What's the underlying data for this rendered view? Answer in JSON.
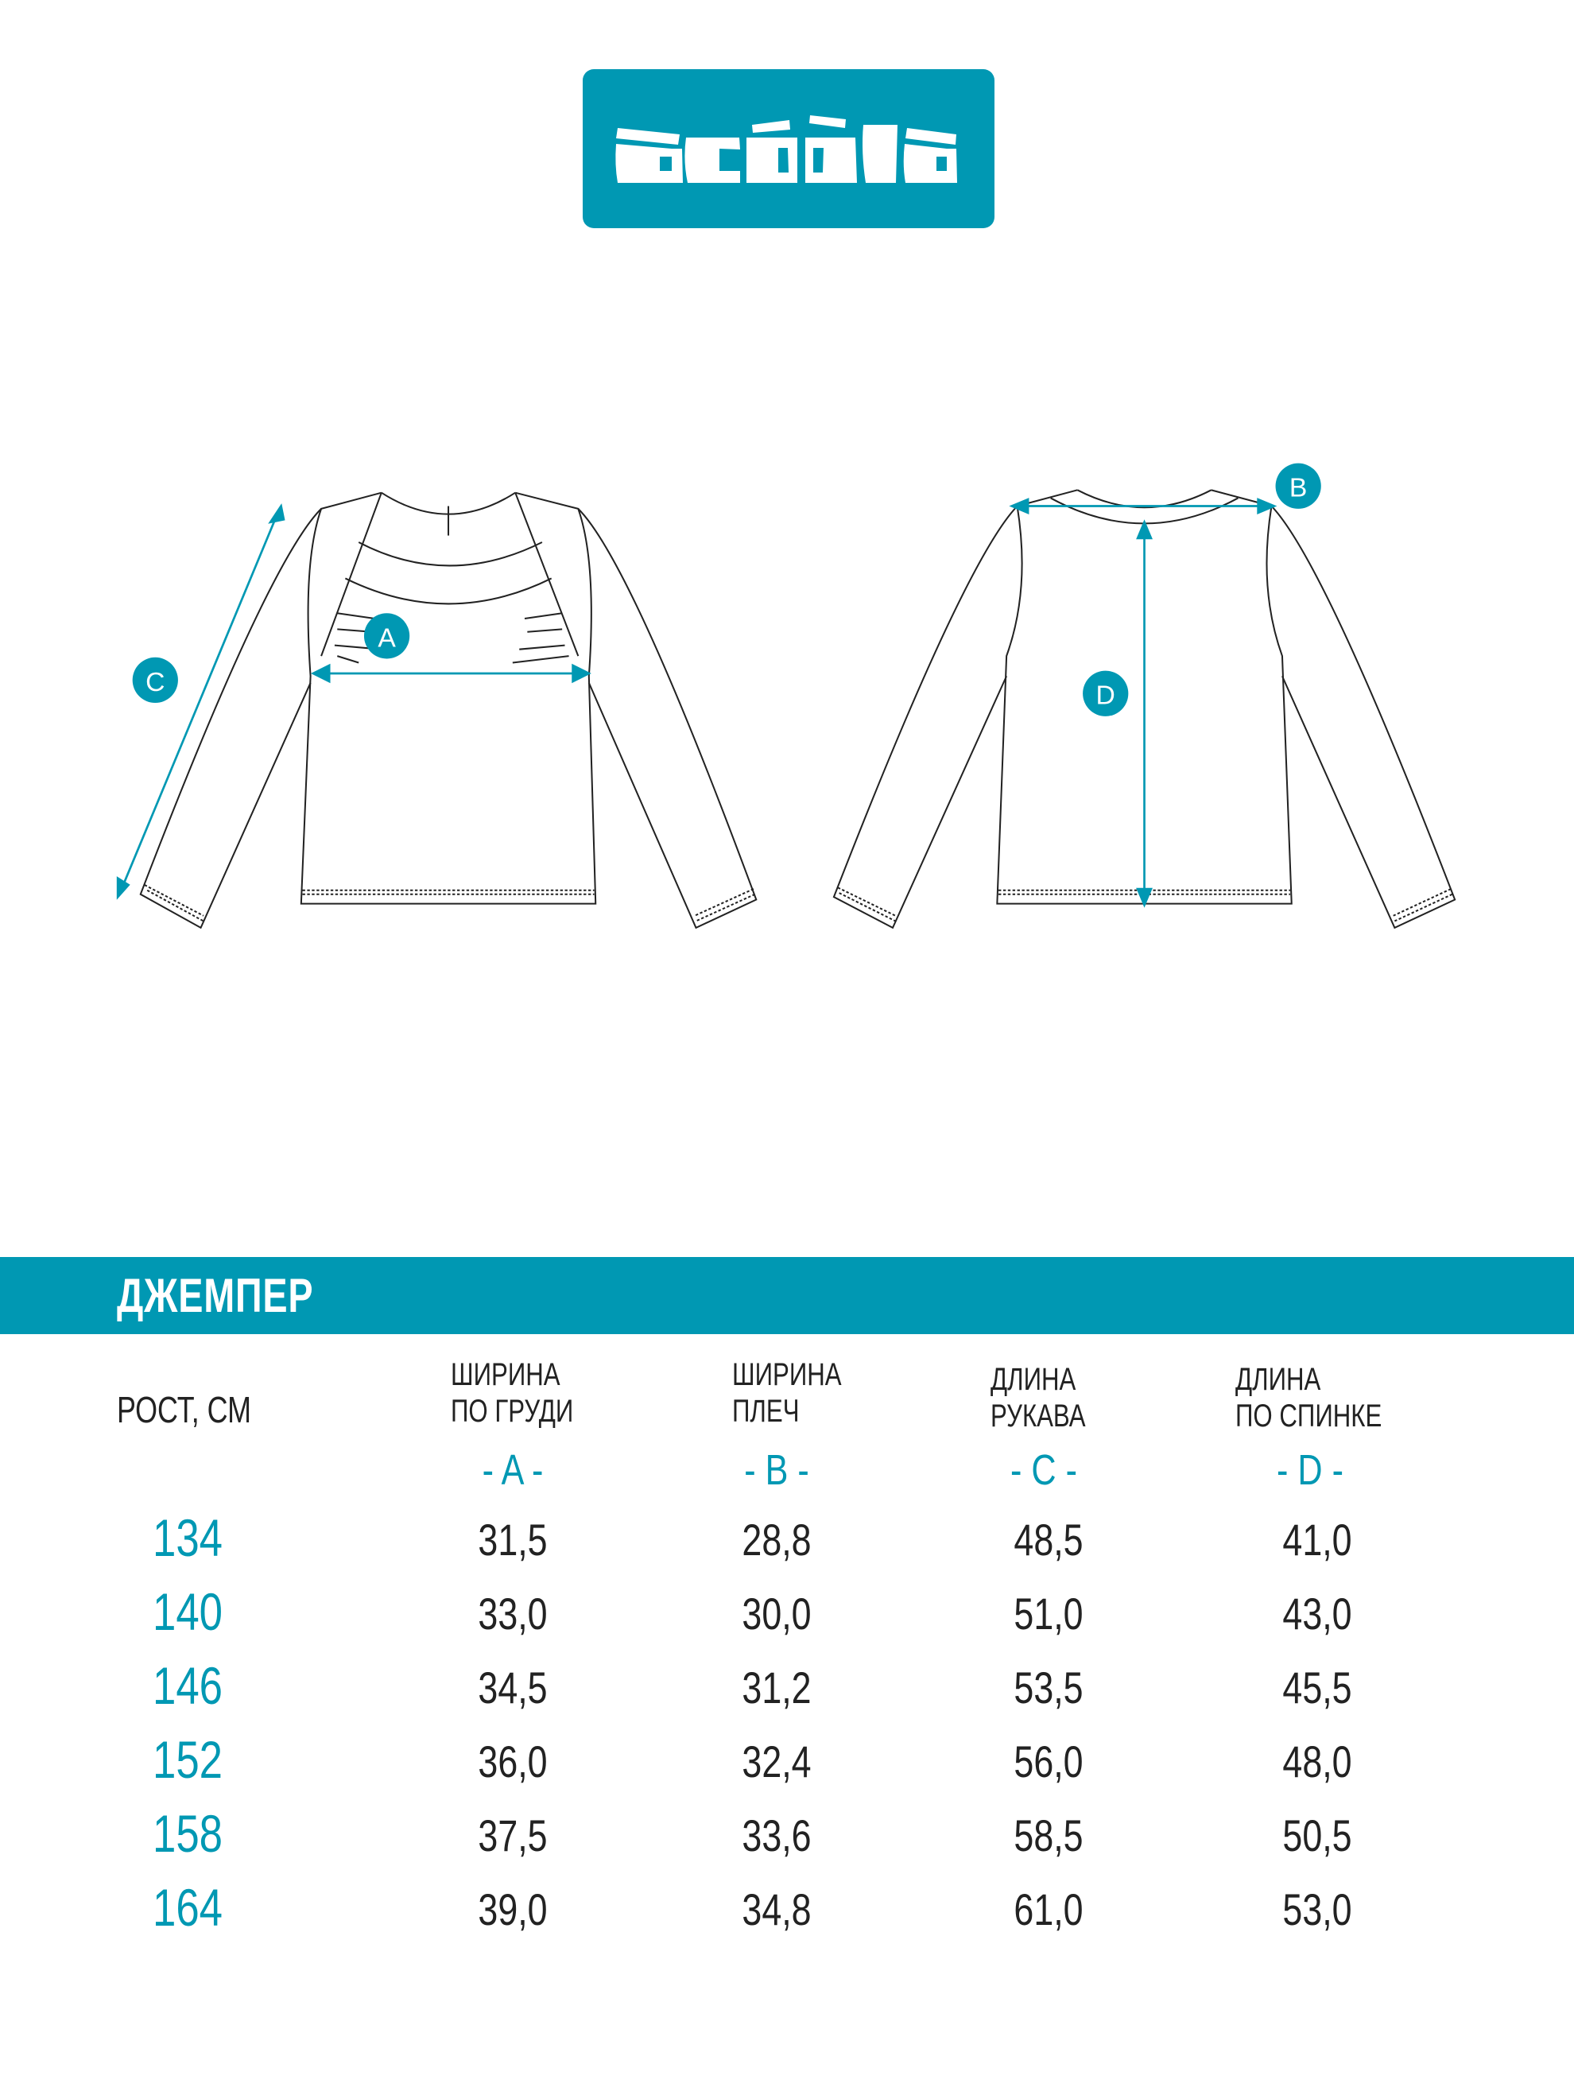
{
  "brand": {
    "logo_text": "acoola",
    "color": "#0098B3"
  },
  "labels": {
    "A": "A",
    "B": "B",
    "C": "C",
    "D": "D"
  },
  "product": {
    "title": "ДЖЕМПЕР"
  },
  "table": {
    "row_header": "РОСТ, СМ",
    "columns": [
      {
        "line1": "ШИРИНА",
        "line2": "ПО ГРУДИ",
        "letter": "- A -"
      },
      {
        "line1": "ШИРИНА",
        "line2": "ПЛЕЧ",
        "letter": "- B -"
      },
      {
        "line1": "ДЛИНА",
        "line2": "РУКАВА",
        "letter": "- C -"
      },
      {
        "line1": "ДЛИНА",
        "line2": "ПО СПИНКЕ",
        "letter": "- D -"
      }
    ],
    "rows": [
      {
        "height": "134",
        "values": [
          "31,5",
          "28,8",
          "48,5",
          "41,0"
        ]
      },
      {
        "height": "140",
        "values": [
          "33,0",
          "30,0",
          "51,0",
          "43,0"
        ]
      },
      {
        "height": "146",
        "values": [
          "34,5",
          "31,2",
          "53,5",
          "45,5"
        ]
      },
      {
        "height": "152",
        "values": [
          "36,0",
          "32,4",
          "56,0",
          "48,0"
        ]
      },
      {
        "height": "158",
        "values": [
          "37,5",
          "33,6",
          "58,5",
          "50,5"
        ]
      },
      {
        "height": "164",
        "values": [
          "39,0",
          "34,8",
          "61,0",
          "53,0"
        ]
      }
    ]
  }
}
